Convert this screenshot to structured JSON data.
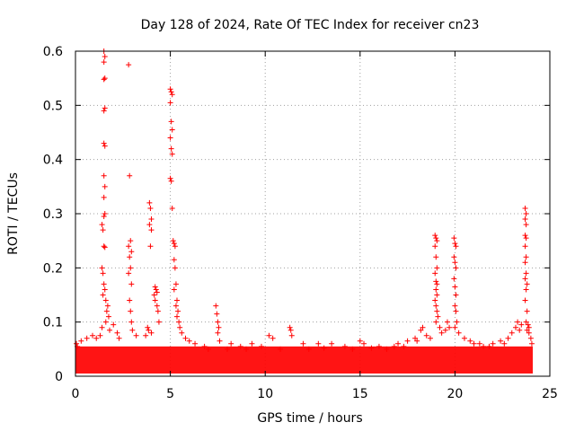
{
  "chart_data": {
    "type": "scatter",
    "title": "Day 128 of 2024, Rate Of TEC Index for receiver cn23",
    "xlabel": "GPS time / hours",
    "ylabel": "ROTI / TECUs",
    "xlim": [
      0,
      25
    ],
    "ylim": [
      0,
      0.6
    ],
    "x_ticks": [
      "0",
      "5",
      "10",
      "15",
      "20",
      "25"
    ],
    "y_ticks": [
      "0",
      "0.1",
      "0.2",
      "0.3",
      "0.4",
      "0.5",
      "0.6"
    ],
    "grid": true,
    "marker": "+",
    "color": "#ff0000",
    "baseline_band": [
      0.005,
      0.055
    ],
    "series": [
      {
        "points": [
          [
            1.5,
            0.6
          ],
          [
            1.55,
            0.59
          ],
          [
            1.5,
            0.58
          ],
          [
            1.55,
            0.55
          ],
          [
            1.5,
            0.548
          ],
          [
            1.55,
            0.495
          ],
          [
            1.5,
            0.49
          ],
          [
            1.5,
            0.43
          ],
          [
            1.55,
            0.425
          ],
          [
            1.5,
            0.37
          ],
          [
            1.55,
            0.35
          ],
          [
            1.5,
            0.33
          ],
          [
            1.55,
            0.3
          ],
          [
            1.5,
            0.295
          ],
          [
            1.4,
            0.28
          ],
          [
            1.45,
            0.27
          ],
          [
            1.5,
            0.24
          ],
          [
            1.55,
            0.238
          ],
          [
            1.4,
            0.2
          ],
          [
            1.45,
            0.19
          ],
          [
            1.5,
            0.17
          ],
          [
            1.55,
            0.16
          ],
          [
            1.45,
            0.15
          ],
          [
            1.6,
            0.14
          ],
          [
            1.7,
            0.13
          ],
          [
            1.65,
            0.12
          ],
          [
            1.75,
            0.11
          ],
          [
            1.6,
            0.1
          ],
          [
            1.8,
            0.085
          ],
          [
            1.4,
            0.09
          ],
          [
            1.3,
            0.075
          ],
          [
            2.8,
            0.575
          ],
          [
            2.85,
            0.37
          ],
          [
            2.9,
            0.25
          ],
          [
            2.8,
            0.24
          ],
          [
            2.95,
            0.23
          ],
          [
            2.85,
            0.22
          ],
          [
            2.9,
            0.2
          ],
          [
            2.8,
            0.19
          ],
          [
            2.95,
            0.17
          ],
          [
            2.85,
            0.14
          ],
          [
            2.9,
            0.12
          ],
          [
            2.95,
            0.1
          ],
          [
            3.0,
            0.085
          ],
          [
            3.2,
            0.075
          ],
          [
            2.0,
            0.095
          ],
          [
            2.2,
            0.08
          ],
          [
            2.3,
            0.07
          ],
          [
            3.9,
            0.32
          ],
          [
            3.95,
            0.31
          ],
          [
            4.0,
            0.29
          ],
          [
            3.9,
            0.28
          ],
          [
            4.0,
            0.27
          ],
          [
            3.95,
            0.24
          ],
          [
            4.2,
            0.165
          ],
          [
            4.25,
            0.16
          ],
          [
            4.3,
            0.155
          ],
          [
            4.15,
            0.15
          ],
          [
            4.2,
            0.14
          ],
          [
            4.3,
            0.13
          ],
          [
            4.35,
            0.12
          ],
          [
            4.4,
            0.1
          ],
          [
            3.8,
            0.09
          ],
          [
            3.85,
            0.085
          ],
          [
            3.7,
            0.075
          ],
          [
            4.0,
            0.08
          ],
          [
            5.0,
            0.53
          ],
          [
            5.05,
            0.525
          ],
          [
            5.1,
            0.52
          ],
          [
            5.0,
            0.505
          ],
          [
            5.05,
            0.47
          ],
          [
            5.1,
            0.455
          ],
          [
            5.0,
            0.44
          ],
          [
            5.05,
            0.42
          ],
          [
            5.1,
            0.41
          ],
          [
            5.0,
            0.365
          ],
          [
            5.05,
            0.36
          ],
          [
            5.1,
            0.31
          ],
          [
            5.15,
            0.25
          ],
          [
            5.2,
            0.245
          ],
          [
            5.25,
            0.24
          ],
          [
            5.2,
            0.215
          ],
          [
            5.25,
            0.2
          ],
          [
            5.3,
            0.17
          ],
          [
            5.2,
            0.16
          ],
          [
            5.35,
            0.14
          ],
          [
            5.3,
            0.13
          ],
          [
            5.4,
            0.12
          ],
          [
            5.35,
            0.11
          ],
          [
            5.45,
            0.1
          ],
          [
            5.5,
            0.09
          ],
          [
            5.6,
            0.08
          ],
          [
            5.8,
            0.07
          ],
          [
            6.0,
            0.065
          ],
          [
            7.4,
            0.13
          ],
          [
            7.45,
            0.115
          ],
          [
            7.5,
            0.1
          ],
          [
            7.55,
            0.09
          ],
          [
            7.5,
            0.08
          ],
          [
            7.6,
            0.065
          ],
          [
            8.2,
            0.06
          ],
          [
            8.7,
            0.055
          ],
          [
            9.3,
            0.06
          ],
          [
            10.2,
            0.075
          ],
          [
            10.4,
            0.07
          ],
          [
            11.3,
            0.09
          ],
          [
            11.35,
            0.085
          ],
          [
            11.4,
            0.075
          ],
          [
            12.0,
            0.06
          ],
          [
            12.8,
            0.06
          ],
          [
            13.5,
            0.06
          ],
          [
            14.2,
            0.055
          ],
          [
            15.0,
            0.065
          ],
          [
            15.2,
            0.06
          ],
          [
            16.0,
            0.055
          ],
          [
            17.0,
            0.06
          ],
          [
            17.5,
            0.065
          ],
          [
            17.9,
            0.07
          ],
          [
            18.0,
            0.065
          ],
          [
            18.2,
            0.085
          ],
          [
            18.3,
            0.09
          ],
          [
            18.5,
            0.075
          ],
          [
            18.7,
            0.07
          ],
          [
            18.95,
            0.26
          ],
          [
            19.0,
            0.255
          ],
          [
            19.05,
            0.25
          ],
          [
            18.95,
            0.24
          ],
          [
            19.0,
            0.22
          ],
          [
            19.05,
            0.2
          ],
          [
            18.95,
            0.19
          ],
          [
            19.0,
            0.175
          ],
          [
            19.05,
            0.17
          ],
          [
            19.0,
            0.16
          ],
          [
            19.05,
            0.15
          ],
          [
            18.95,
            0.14
          ],
          [
            19.0,
            0.13
          ],
          [
            19.05,
            0.12
          ],
          [
            19.1,
            0.11
          ],
          [
            19.0,
            0.1
          ],
          [
            19.2,
            0.09
          ],
          [
            19.3,
            0.08
          ],
          [
            19.6,
            0.1
          ],
          [
            19.7,
            0.09
          ],
          [
            19.5,
            0.085
          ],
          [
            19.95,
            0.255
          ],
          [
            20.0,
            0.245
          ],
          [
            20.05,
            0.24
          ],
          [
            19.95,
            0.22
          ],
          [
            20.0,
            0.21
          ],
          [
            20.05,
            0.2
          ],
          [
            19.95,
            0.18
          ],
          [
            20.0,
            0.165
          ],
          [
            20.05,
            0.15
          ],
          [
            20.0,
            0.13
          ],
          [
            20.05,
            0.12
          ],
          [
            20.1,
            0.1
          ],
          [
            20.0,
            0.09
          ],
          [
            20.2,
            0.08
          ],
          [
            20.5,
            0.07
          ],
          [
            20.8,
            0.065
          ],
          [
            21.0,
            0.06
          ],
          [
            21.5,
            0.055
          ],
          [
            22.0,
            0.06
          ],
          [
            22.4,
            0.065
          ],
          [
            22.8,
            0.07
          ],
          [
            23.0,
            0.08
          ],
          [
            23.2,
            0.09
          ],
          [
            23.3,
            0.1
          ],
          [
            23.5,
            0.095
          ],
          [
            23.4,
            0.085
          ],
          [
            23.7,
            0.31
          ],
          [
            23.75,
            0.3
          ],
          [
            23.7,
            0.29
          ],
          [
            23.75,
            0.28
          ],
          [
            23.7,
            0.26
          ],
          [
            23.75,
            0.255
          ],
          [
            23.7,
            0.24
          ],
          [
            23.75,
            0.22
          ],
          [
            23.7,
            0.21
          ],
          [
            23.75,
            0.19
          ],
          [
            23.7,
            0.18
          ],
          [
            23.8,
            0.17
          ],
          [
            23.75,
            0.16
          ],
          [
            23.7,
            0.14
          ],
          [
            23.8,
            0.12
          ],
          [
            23.75,
            0.1
          ],
          [
            23.85,
            0.095
          ],
          [
            23.9,
            0.09
          ],
          [
            23.8,
            0.085
          ],
          [
            23.9,
            0.08
          ],
          [
            24.0,
            0.07
          ],
          [
            24.05,
            0.06
          ],
          [
            0.05,
            0.06
          ],
          [
            0.1,
            0.055
          ],
          [
            0.3,
            0.065
          ],
          [
            0.6,
            0.07
          ],
          [
            0.9,
            0.075
          ],
          [
            1.1,
            0.07
          ],
          [
            6.3,
            0.06
          ],
          [
            6.8,
            0.055
          ],
          [
            7.0,
            0.05
          ],
          [
            8.0,
            0.05
          ],
          [
            9.0,
            0.05
          ],
          [
            9.8,
            0.055
          ],
          [
            10.8,
            0.05
          ],
          [
            12.3,
            0.05
          ],
          [
            13.1,
            0.052
          ],
          [
            14.6,
            0.05
          ],
          [
            15.6,
            0.052
          ],
          [
            16.4,
            0.05
          ],
          [
            16.8,
            0.055
          ],
          [
            17.3,
            0.055
          ],
          [
            21.3,
            0.06
          ],
          [
            21.8,
            0.055
          ],
          [
            22.6,
            0.06
          ]
        ]
      }
    ]
  }
}
